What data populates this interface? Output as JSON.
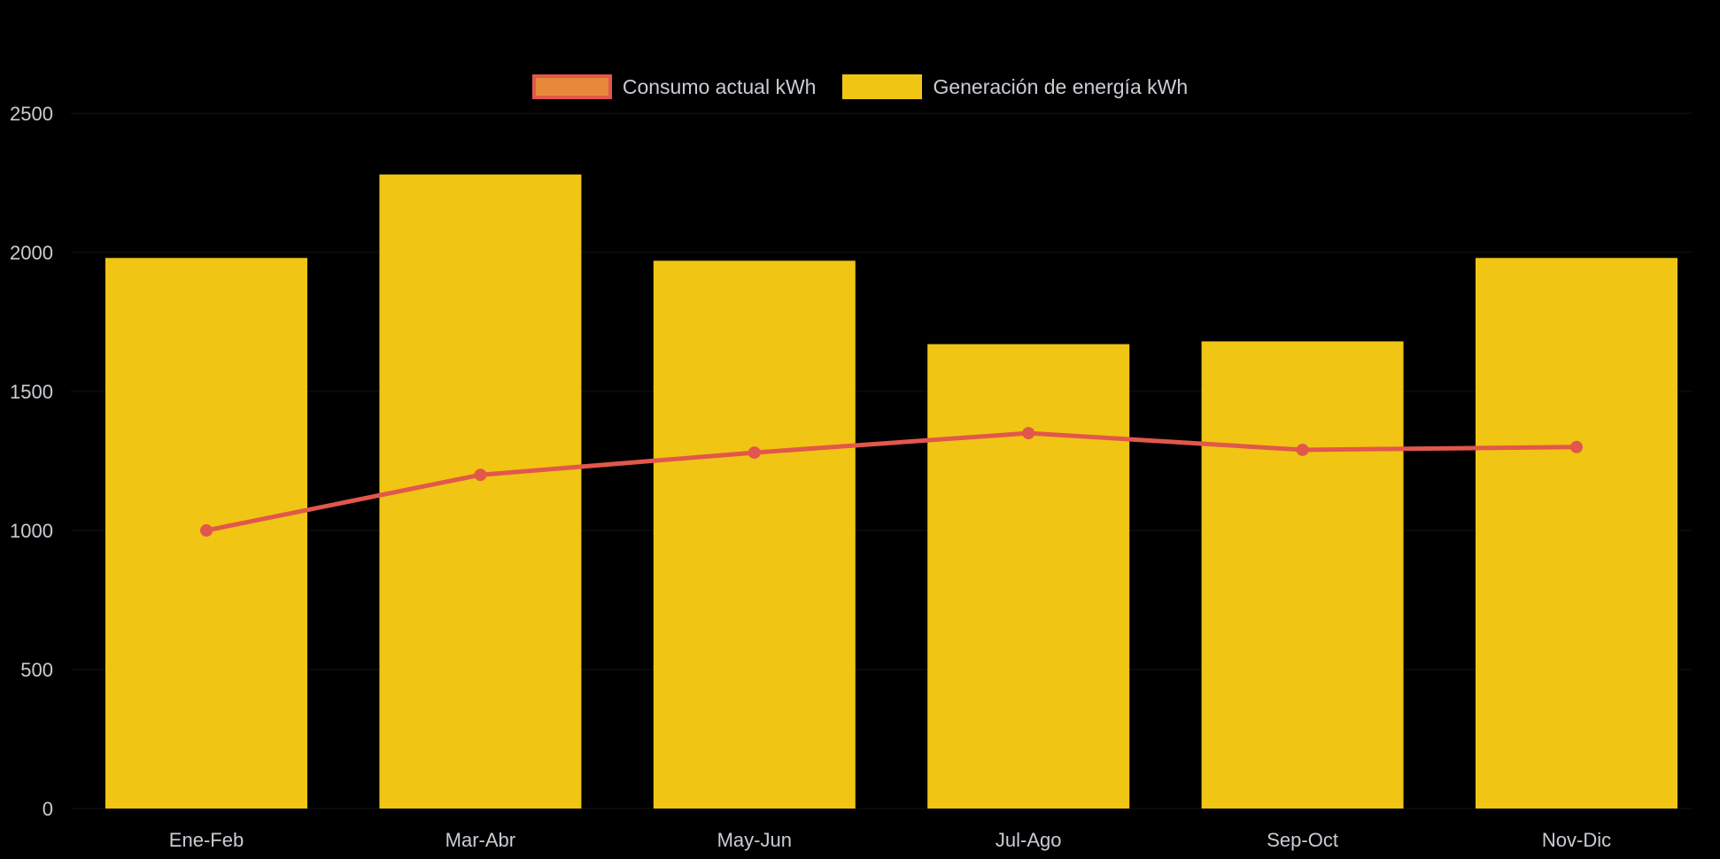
{
  "chart_data": {
    "type": "bar",
    "combo": "bar+line",
    "title": "",
    "categories": [
      "Ene-Feb",
      "Mar-Abr",
      "May-Jun",
      "Jul-Ago",
      "Sep-Oct",
      "Nov-Dic"
    ],
    "series": [
      {
        "name": "Consumo actual kWh",
        "type": "line",
        "values": [
          1000,
          1200,
          1280,
          1350,
          1290,
          1300
        ],
        "color": "#E2574C"
      },
      {
        "name": "Generación de energía kWh",
        "type": "bar",
        "values": [
          1980,
          2280,
          1970,
          1670,
          1680,
          1980
        ],
        "color": "#F0C514"
      }
    ],
    "xlabel": "",
    "ylabel": "",
    "ylim": [
      0,
      2500
    ],
    "yticks": [
      0,
      500,
      1000,
      1500,
      2000,
      2500
    ],
    "grid": "faint-horizontal",
    "legend_position": "top",
    "background_color": "#000000",
    "text_color": "#C9CDD2"
  },
  "legend": {
    "items": [
      {
        "label": "Consumo actual kWh",
        "swatch_fill": "#E8883A",
        "swatch_border": "#E2574C"
      },
      {
        "label": "Generación de energía kWh",
        "swatch_fill": "#F0C514",
        "swatch_border": "#F0C514"
      }
    ]
  }
}
